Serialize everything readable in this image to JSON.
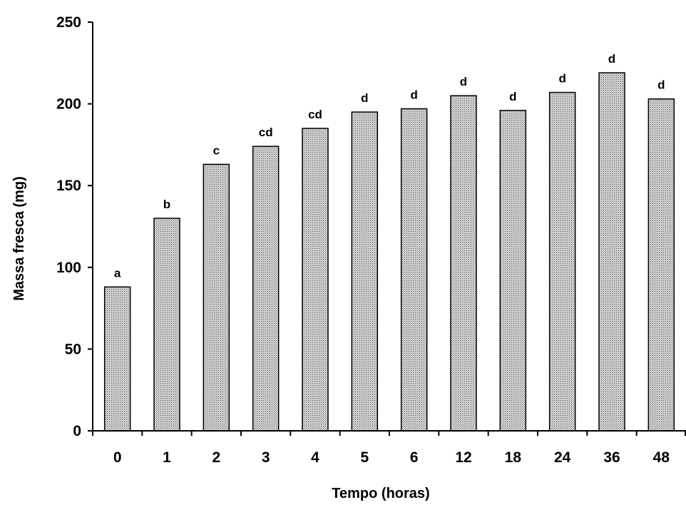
{
  "chart_data": {
    "type": "bar",
    "categories": [
      "0",
      "1",
      "2",
      "3",
      "4",
      "5",
      "6",
      "12",
      "18",
      "24",
      "36",
      "48"
    ],
    "values": [
      88,
      130,
      163,
      174,
      185,
      195,
      197,
      205,
      196,
      207,
      219,
      203
    ],
    "significance_letters": [
      "a",
      "b",
      "c",
      "cd",
      "cd",
      "d",
      "d",
      "d",
      "d",
      "d",
      "d",
      "d"
    ],
    "xlabel": "Tempo (horas)",
    "ylabel": "Massa fresca (mg)",
    "ylim": [
      0,
      250
    ],
    "yticks": [
      0,
      50,
      100,
      150,
      200,
      250
    ],
    "grid": false,
    "bar_fill": "#bdbdbd",
    "bar_stroke": "#000000"
  }
}
